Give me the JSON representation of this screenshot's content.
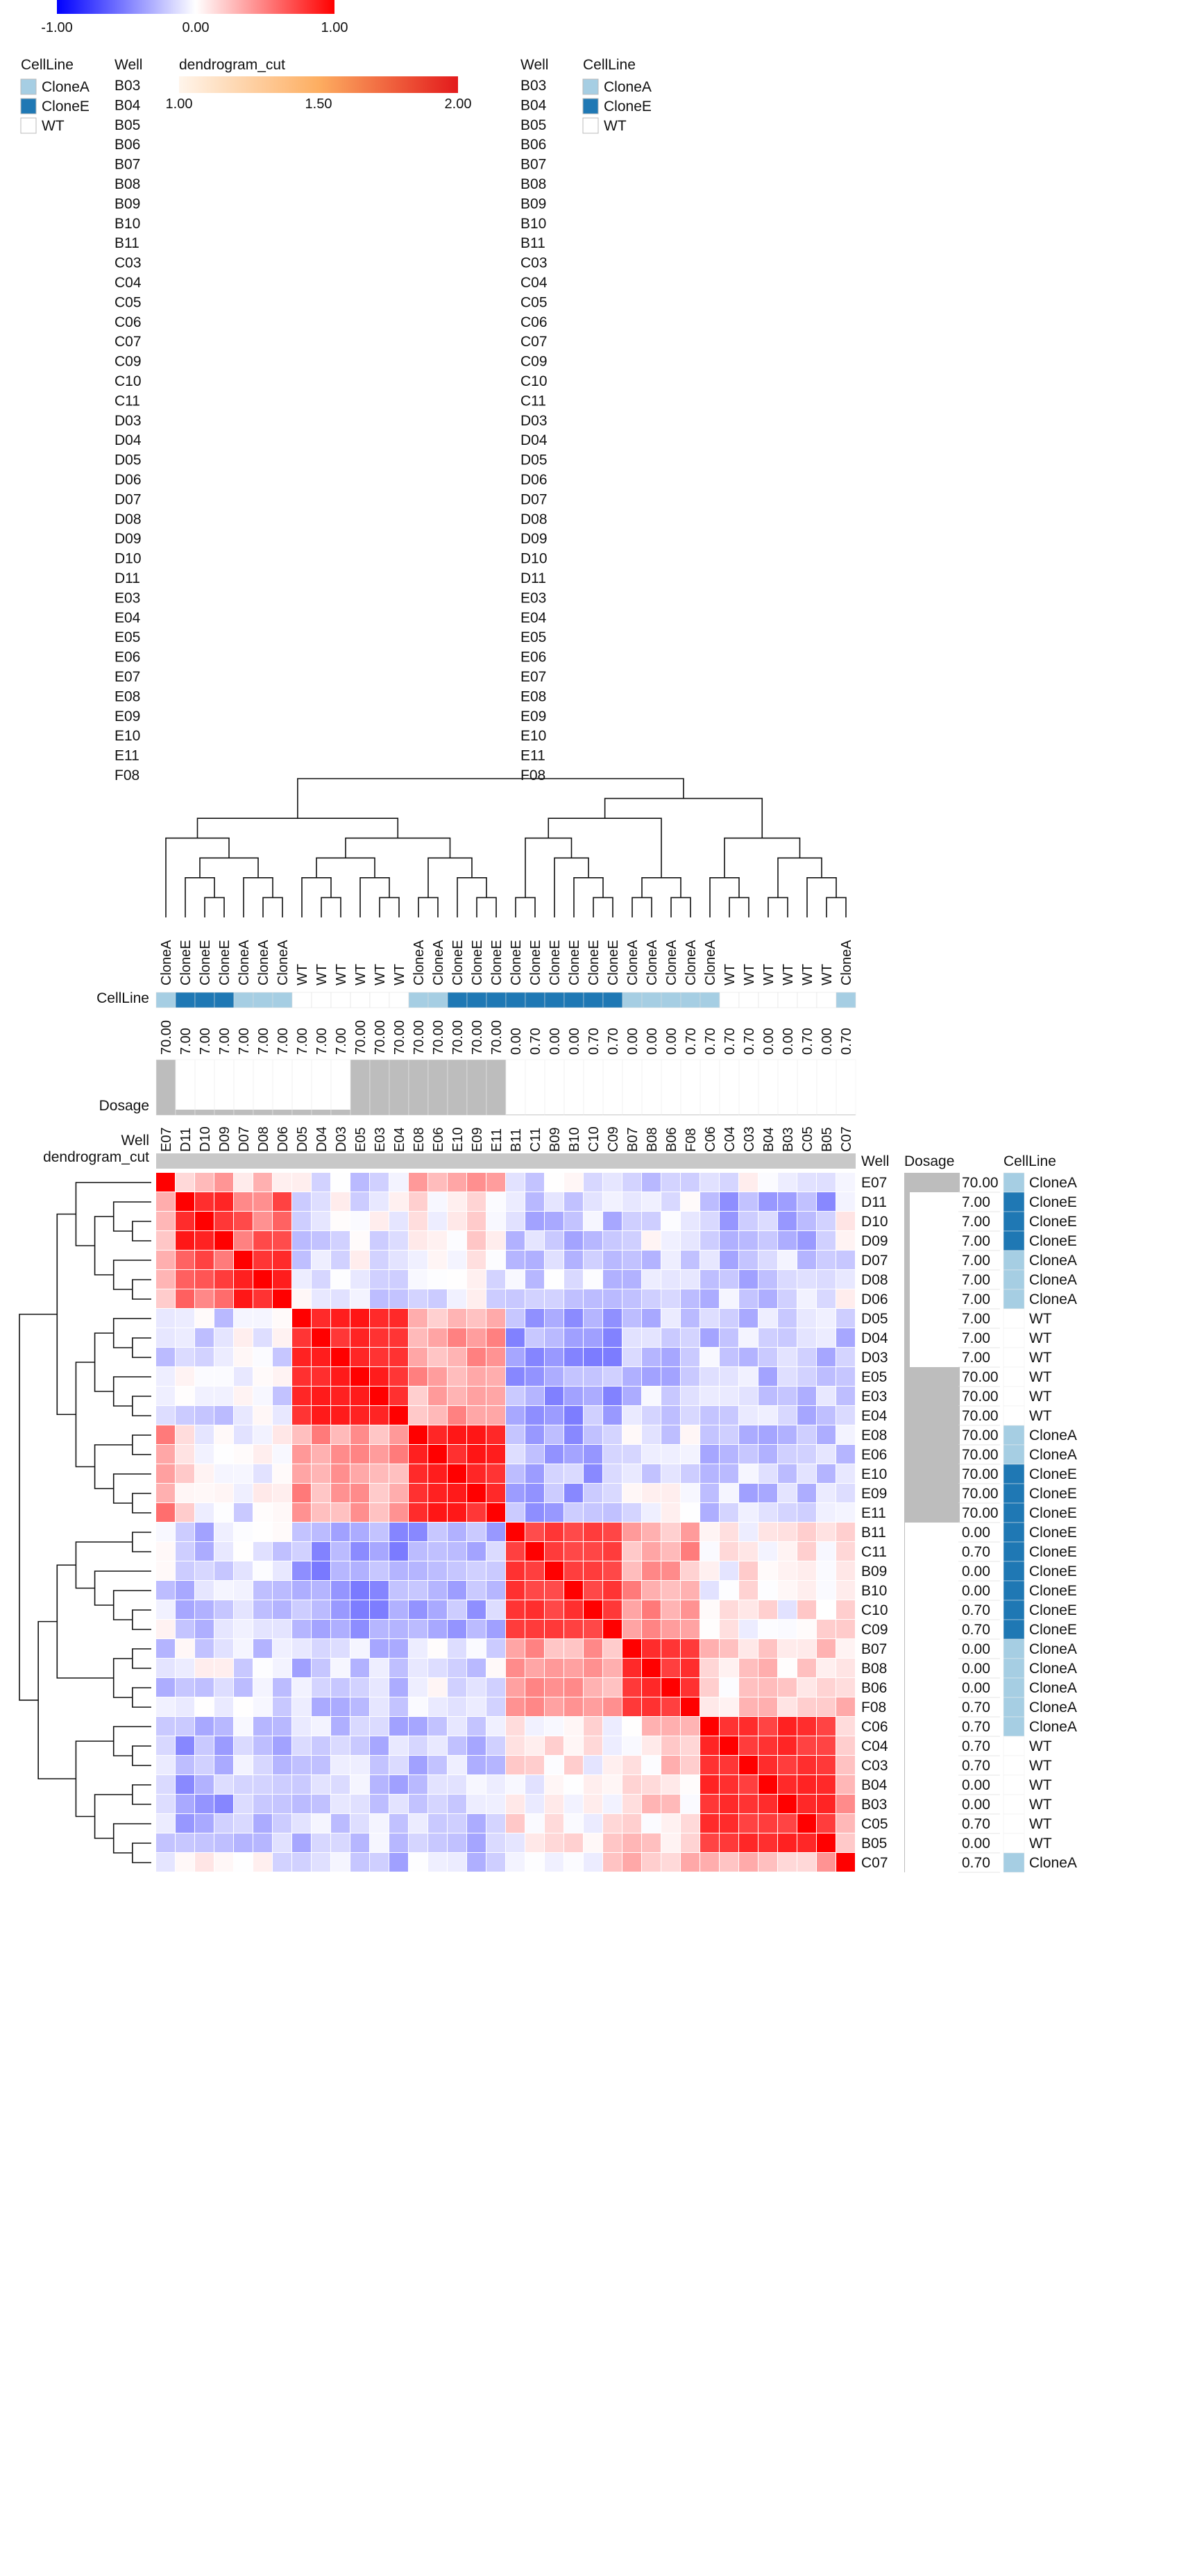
{
  "chart_data": {
    "type": "heatmap",
    "title": "",
    "row_order": [
      "E07",
      "D11",
      "D10",
      "D09",
      "D07",
      "D08",
      "D06",
      "D05",
      "D04",
      "D03",
      "E05",
      "E03",
      "E04",
      "E08",
      "E06",
      "E10",
      "E09",
      "E11",
      "B11",
      "C11",
      "B09",
      "B10",
      "C10",
      "C09",
      "B07",
      "B08",
      "B06",
      "F08",
      "C06",
      "C04",
      "C03",
      "B04",
      "B03",
      "C05",
      "B05",
      "C07"
    ],
    "rows": [
      {
        "well": "E07",
        "dosage": "70.00",
        "cellline": "CloneA"
      },
      {
        "well": "D11",
        "dosage": "7.00",
        "cellline": "CloneE"
      },
      {
        "well": "D10",
        "dosage": "7.00",
        "cellline": "CloneE"
      },
      {
        "well": "D09",
        "dosage": "7.00",
        "cellline": "CloneE"
      },
      {
        "well": "D07",
        "dosage": "7.00",
        "cellline": "CloneA"
      },
      {
        "well": "D08",
        "dosage": "7.00",
        "cellline": "CloneA"
      },
      {
        "well": "D06",
        "dosage": "7.00",
        "cellline": "CloneA"
      },
      {
        "well": "D05",
        "dosage": "7.00",
        "cellline": "WT"
      },
      {
        "well": "D04",
        "dosage": "7.00",
        "cellline": "WT"
      },
      {
        "well": "D03",
        "dosage": "7.00",
        "cellline": "WT"
      },
      {
        "well": "E05",
        "dosage": "70.00",
        "cellline": "WT"
      },
      {
        "well": "E03",
        "dosage": "70.00",
        "cellline": "WT"
      },
      {
        "well": "E04",
        "dosage": "70.00",
        "cellline": "WT"
      },
      {
        "well": "E08",
        "dosage": "70.00",
        "cellline": "CloneA"
      },
      {
        "well": "E06",
        "dosage": "70.00",
        "cellline": "CloneA"
      },
      {
        "well": "E10",
        "dosage": "70.00",
        "cellline": "CloneE"
      },
      {
        "well": "E09",
        "dosage": "70.00",
        "cellline": "CloneE"
      },
      {
        "well": "E11",
        "dosage": "70.00",
        "cellline": "CloneE"
      },
      {
        "well": "B11",
        "dosage": "0.00",
        "cellline": "CloneE"
      },
      {
        "well": "C11",
        "dosage": "0.70",
        "cellline": "CloneE"
      },
      {
        "well": "B09",
        "dosage": "0.00",
        "cellline": "CloneE"
      },
      {
        "well": "B10",
        "dosage": "0.00",
        "cellline": "CloneE"
      },
      {
        "well": "C10",
        "dosage": "0.70",
        "cellline": "CloneE"
      },
      {
        "well": "C09",
        "dosage": "0.70",
        "cellline": "CloneE"
      },
      {
        "well": "B07",
        "dosage": "0.00",
        "cellline": "CloneA"
      },
      {
        "well": "B08",
        "dosage": "0.00",
        "cellline": "CloneA"
      },
      {
        "well": "B06",
        "dosage": "0.00",
        "cellline": "CloneA"
      },
      {
        "well": "F08",
        "dosage": "0.70",
        "cellline": "CloneA"
      },
      {
        "well": "C06",
        "dosage": "0.70",
        "cellline": "CloneA"
      },
      {
        "well": "C04",
        "dosage": "0.70",
        "cellline": "WT"
      },
      {
        "well": "C03",
        "dosage": "0.70",
        "cellline": "WT"
      },
      {
        "well": "B04",
        "dosage": "0.00",
        "cellline": "WT"
      },
      {
        "well": "B03",
        "dosage": "0.00",
        "cellline": "WT"
      },
      {
        "well": "C05",
        "dosage": "0.70",
        "cellline": "WT"
      },
      {
        "well": "B05",
        "dosage": "0.00",
        "cellline": "WT"
      },
      {
        "well": "C07",
        "dosage": "0.70",
        "cellline": "CloneA"
      }
    ],
    "col_order": [
      "E07",
      "D11",
      "D10",
      "D09",
      "D07",
      "D08",
      "D06",
      "D05",
      "D04",
      "D03",
      "E05",
      "E03",
      "E04",
      "E08",
      "E06",
      "E10",
      "E09",
      "E11",
      "B11",
      "C11",
      "B09",
      "B10",
      "C10",
      "C09",
      "B07",
      "B08",
      "B06",
      "F08",
      "C06",
      "C04",
      "C03",
      "B04",
      "B03",
      "C05",
      "B05",
      "C07"
    ],
    "block_assignments": [
      0,
      1,
      1,
      1,
      2,
      2,
      2,
      3,
      3,
      3,
      3,
      3,
      3,
      4,
      4,
      4,
      4,
      4,
      5,
      5,
      5,
      5,
      5,
      5,
      6,
      6,
      6,
      6,
      7,
      7,
      7,
      7,
      7,
      7,
      7,
      8
    ],
    "block_similarity": [
      [
        1.0,
        0.3,
        0.2,
        -0.1,
        0.4,
        -0.1,
        -0.2,
        -0.1,
        -0.15
      ],
      [
        0.3,
        0.85,
        0.6,
        -0.1,
        0.05,
        -0.2,
        -0.1,
        -0.3,
        -0.05
      ],
      [
        0.2,
        0.6,
        0.85,
        -0.1,
        -0.05,
        -0.15,
        -0.15,
        -0.2,
        -0.1
      ],
      [
        -0.1,
        -0.1,
        -0.1,
        0.85,
        0.35,
        -0.35,
        -0.2,
        -0.2,
        -0.2
      ],
      [
        0.4,
        0.05,
        -0.05,
        0.35,
        0.85,
        -0.3,
        -0.1,
        -0.2,
        -0.15
      ],
      [
        -0.1,
        -0.2,
        -0.15,
        -0.35,
        -0.3,
        0.75,
        0.35,
        0.05,
        0.1
      ],
      [
        -0.2,
        -0.1,
        -0.15,
        -0.2,
        -0.1,
        0.35,
        0.8,
        0.15,
        0.2
      ],
      [
        -0.1,
        -0.3,
        -0.2,
        -0.2,
        -0.2,
        0.05,
        0.15,
        0.8,
        0.3
      ],
      [
        -0.15,
        -0.05,
        -0.1,
        -0.2,
        -0.15,
        0.1,
        0.2,
        0.3,
        1.0
      ]
    ],
    "value_range": [
      -1.0,
      1.0
    ],
    "col_cellline": [
      "CloneA",
      "CloneE",
      "CloneE",
      "CloneE",
      "CloneA",
      "CloneA",
      "CloneA",
      "WT",
      "WT",
      "WT",
      "WT",
      "WT",
      "WT",
      "CloneA",
      "CloneA",
      "CloneE",
      "CloneE",
      "CloneE",
      "CloneE",
      "CloneE",
      "CloneE",
      "CloneE",
      "CloneE",
      "CloneE",
      "CloneA",
      "CloneA",
      "CloneA",
      "CloneA",
      "CloneA",
      "WT",
      "WT",
      "WT",
      "WT",
      "WT",
      "WT",
      "CloneA"
    ],
    "col_cellline_labels": [
      "CloneA",
      "CloneE",
      "CloneE",
      "CloneE",
      "CloneA",
      "CloneA",
      "CloneA",
      "WT",
      "WT",
      "WT",
      "WT",
      "WT",
      "WT",
      "CloneA",
      "CloneA",
      "CloneE",
      "CloneE",
      "CloneE",
      "CloneE",
      "CloneE",
      "CloneE",
      "CloneE",
      "CloneE",
      "CloneE",
      "CloneA",
      "CloneA",
      "CloneA",
      "CloneA",
      "CloneA",
      "WT",
      "WT",
      "WT",
      "WT",
      "WT",
      "WT",
      "CloneA"
    ],
    "col_dosage": [
      "70.00",
      "7.00",
      "7.00",
      "7.00",
      "7.00",
      "7.00",
      "7.00",
      "7.00",
      "7.00",
      "7.00",
      "70.00",
      "70.00",
      "70.00",
      "70.00",
      "70.00",
      "70.00",
      "70.00",
      "70.00",
      "0.00",
      "0.70",
      "0.00",
      "0.00",
      "0.70",
      "0.70",
      "0.00",
      "0.00",
      "0.00",
      "0.70",
      "0.70",
      "0.70",
      "0.70",
      "0.00",
      "0.00",
      "0.70",
      "0.00",
      "0.70"
    ],
    "legends": {
      "colorbar": {
        "ticks": [
          "-1.00",
          "0.00",
          "1.00"
        ]
      },
      "cellline_left": {
        "title": "CellLine",
        "items": [
          "CloneA",
          "CloneE",
          "WT"
        ]
      },
      "well_left": {
        "title": "Well",
        "items": [
          "B03",
          "B04",
          "B05",
          "B06",
          "B07",
          "B08",
          "B09",
          "B10",
          "B11",
          "C03",
          "C04",
          "C05",
          "C06",
          "C07",
          "C09",
          "C10",
          "C11",
          "D03",
          "D04",
          "D05",
          "D06",
          "D07",
          "D08",
          "D09",
          "D10",
          "D11",
          "E03",
          "E04",
          "E05",
          "E06",
          "E07",
          "E08",
          "E09",
          "E10",
          "E11",
          "F08"
        ]
      },
      "dendrogram_cut": {
        "title": "dendrogram_cut",
        "ticks": [
          "1.00",
          "1.50",
          "2.00"
        ]
      },
      "well_right": {
        "title": "Well",
        "items": [
          "B03",
          "B04",
          "B05",
          "B06",
          "B07",
          "B08",
          "B09",
          "B10",
          "B11",
          "C03",
          "C04",
          "C05",
          "C06",
          "C07",
          "C09",
          "C10",
          "C11",
          "D03",
          "D04",
          "D05",
          "D06",
          "D07",
          "D08",
          "D09",
          "D10",
          "D11",
          "E03",
          "E04",
          "E05",
          "E06",
          "E07",
          "E08",
          "E09",
          "E10",
          "E11",
          "F08"
        ]
      },
      "cellline_right": {
        "title": "CellLine",
        "items": [
          "CloneA",
          "CloneE",
          "WT"
        ]
      }
    },
    "annotation_labels": {
      "cellline": "CellLine",
      "dosage": "Dosage",
      "well": "Well",
      "dendrogram_cut": "dendrogram_cut",
      "right_well": "Well",
      "right_dosage": "Dosage",
      "right_cellline": "CellLine"
    },
    "colors": {
      "low": "#0000ff",
      "mid": "#ffffff",
      "high": "#ff0000",
      "CloneA": "#a6cee3",
      "CloneE": "#1f78b4",
      "WT": "#ffffff",
      "dosage_bar": "#bdbdbd",
      "cut_low": "#fff5eb",
      "cut_high": "#e31a1c",
      "well_colors": {
        "B03": "#1f77b4",
        "B04": "#aec7e8",
        "B05": "#ff7f0e",
        "B06": "#ffbb78",
        "B07": "#2ca02c",
        "B08": "#98df8a",
        "B09": "#d62728",
        "B10": "#ff9896",
        "B11": "#9467bd",
        "C03": "#c5b0d5",
        "C04": "#8c564b",
        "C05": "#c49c94",
        "C06": "#e377c2",
        "C07": "#f7b6d2",
        "C09": "#7f7f7f",
        "C10": "#c7c7c7",
        "C11": "#bcbd22",
        "D03": "#dbdb8d",
        "D04": "#17becf",
        "D05": "#9edae5",
        "D06": "#393b79",
        "D07": "#5254a3",
        "D08": "#6b6ecf",
        "D09": "#9c9ede",
        "D10": "#637939",
        "D11": "#8ca252",
        "E03": "#b5cf6b",
        "E04": "#cedb9c",
        "E05": "#8c6d31",
        "E06": "#bd9e39",
        "E07": "#e7ba52",
        "E08": "#e7cb94",
        "E09": "#843c39",
        "E10": "#ad494a",
        "E11": "#d6616b",
        "F08": "#e7969c"
      }
    }
  }
}
